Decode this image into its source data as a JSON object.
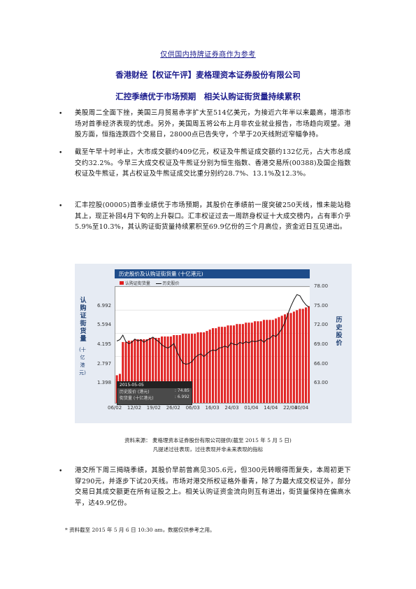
{
  "header": {
    "top_note": "仅供国内持牌证券商作为参考",
    "subtitle": "香港财经【权证午评】麦格理资本证券股份有限公司",
    "title": "汇控季绩优于市场预期　相关认购证街货量持续累积"
  },
  "paragraphs": [
    "美股周二全面下挫，美国三月贸易赤字扩大至514亿美元，为接近六年半以来最高，增添市场对首季经济表现的忧虑。另外，美国周五将公布上月非农业就业报告，市场趋向观望。港股方面，恒指连跌四个交易日，28000点已告失守，个早于20天线附近窄幅争持。",
    "截至午早十时半止，大市成交额约409亿元，权证及牛熊证成交额约132亿元，占大市总成交约32.2%。今早三大成交权证及牛熊证分别为恒生指数、香港交易所(00388)及国企指数权证及牛熊证，其占权证及牛熊证成交比重分别约28.7%、13.1%及12.3%。",
    "汇丰控股(00005)首季业绩优于市场预期，其股价在季绩前一度突破250天线，惟未能站稳其上，现正补回4月下旬的上升裂口。汇丰权证过去一周跻身权证十大成交榜内，占有率介乎5.9%至10.3%，其认购证街货量持续累积至69.9亿份的三个月高位，资金近日互见进出。",
    "港交所下周三揭晓季绩，其股价早前曾高见305.6元，但300元转眼得而复失，本周初更下穿290元，并逐步下试20天线。市场对港交所权证格外垂青，除了为最大成交权证外，部分交易日其成交额更在所有证股之上。相关认购证资金流向则互有进出，街货量保持在偏高水平，达49.9亿份。"
  ],
  "bullet_symbol": "•",
  "chart": {
    "title": "历史股价及认购证街货量 (十亿港元)",
    "legend_outstanding": "认购证街货量",
    "legend_price": "历史股价",
    "left_axis_label": "认购证街货量",
    "left_axis_unit": "(十亿港元)",
    "right_axis_label": "历史股价",
    "tooltip_date": "2015-05-05",
    "tooltip_price_label": "历史股价 (港元)",
    "tooltip_price_value": ": 74.85",
    "tooltip_qty_label": "街货量 (十亿港元)",
    "tooltip_qty_value": ": 6.992",
    "colors": {
      "bar": "#e02020",
      "line": "#111111",
      "header": "#1e4c8a",
      "panel": "#e6ebf3"
    }
  },
  "chart_data": {
    "type": "bar",
    "left_ticks": [
      "6.992",
      "5.594",
      "4.195",
      "2.797",
      "1.398"
    ],
    "right_ticks": [
      "78.00",
      "75.00",
      "72.00",
      "69.00",
      "66.00",
      "63.00"
    ],
    "x_ticks": [
      "06/02",
      "12/02",
      "19/02",
      "26/02",
      "06/03",
      "16/03",
      "24/03",
      "01/04",
      "14/04",
      "22/04",
      "30/04"
    ],
    "series": [
      {
        "name": "认购证街货量",
        "values": [
          2.0,
          2.1,
          4.4,
          4.4,
          4.5,
          4.5,
          4.6,
          4.6,
          4.6,
          4.6,
          4.6,
          4.7,
          4.7,
          4.7,
          4.7,
          4.8,
          4.8,
          4.8,
          4.8,
          4.9,
          4.9,
          4.9,
          5.0,
          5.0,
          5.0,
          5.0,
          5.0,
          5.1,
          5.1,
          5.1,
          5.2,
          5.3,
          5.4,
          5.4,
          5.5,
          5.5,
          5.5,
          5.6,
          5.6,
          5.6,
          5.7,
          5.7,
          5.7,
          5.8,
          5.8,
          5.8,
          5.9,
          5.9,
          5.9,
          6.0,
          6.0,
          6.0,
          6.0,
          6.1,
          6.2,
          6.3,
          6.4,
          6.5,
          6.5,
          6.6,
          6.7,
          6.8,
          6.8,
          6.9,
          6.99
        ]
      },
      {
        "name": "历史股价",
        "values": [
          69.6,
          69.8,
          70.5,
          69.5,
          69.2,
          69.4,
          69.9,
          69.6,
          69.8,
          69.4,
          69.7,
          69.9,
          70.2,
          69.8,
          69.5,
          69.0,
          68.7,
          68.5,
          68.8,
          69.2,
          68.0,
          67.0,
          66.2,
          66.0,
          66.1,
          66.4,
          67.0,
          67.4,
          67.6,
          67.2,
          67.6,
          68.0,
          68.2,
          68.1,
          68.5,
          68.6,
          68.8,
          68.6,
          69.3,
          69.1,
          69.0,
          69.4,
          69.2,
          69.5,
          69.3,
          69.6,
          69.5,
          69.6,
          69.8,
          69.4,
          69.9,
          70.0,
          70.5,
          70.3,
          70.8,
          71.5,
          72.5,
          73.8,
          75.0,
          76.0,
          76.8,
          76.6,
          75.8,
          75.2,
          74.85
        ]
      }
    ],
    "left_range": [
      0,
      8.39
    ],
    "right_range": [
      60,
      78
    ]
  },
  "source": {
    "line1": "资料来源： 麦格理资本证券股份有限公司提供(截至 2015 年 5 月 5 日)",
    "line2": "凡提述过往表现，过往表现并非未来表现的指标"
  },
  "footnote": "* 资料截至 2015 年 5 月 6 日 10:30 am，数据仅供参考之用。"
}
